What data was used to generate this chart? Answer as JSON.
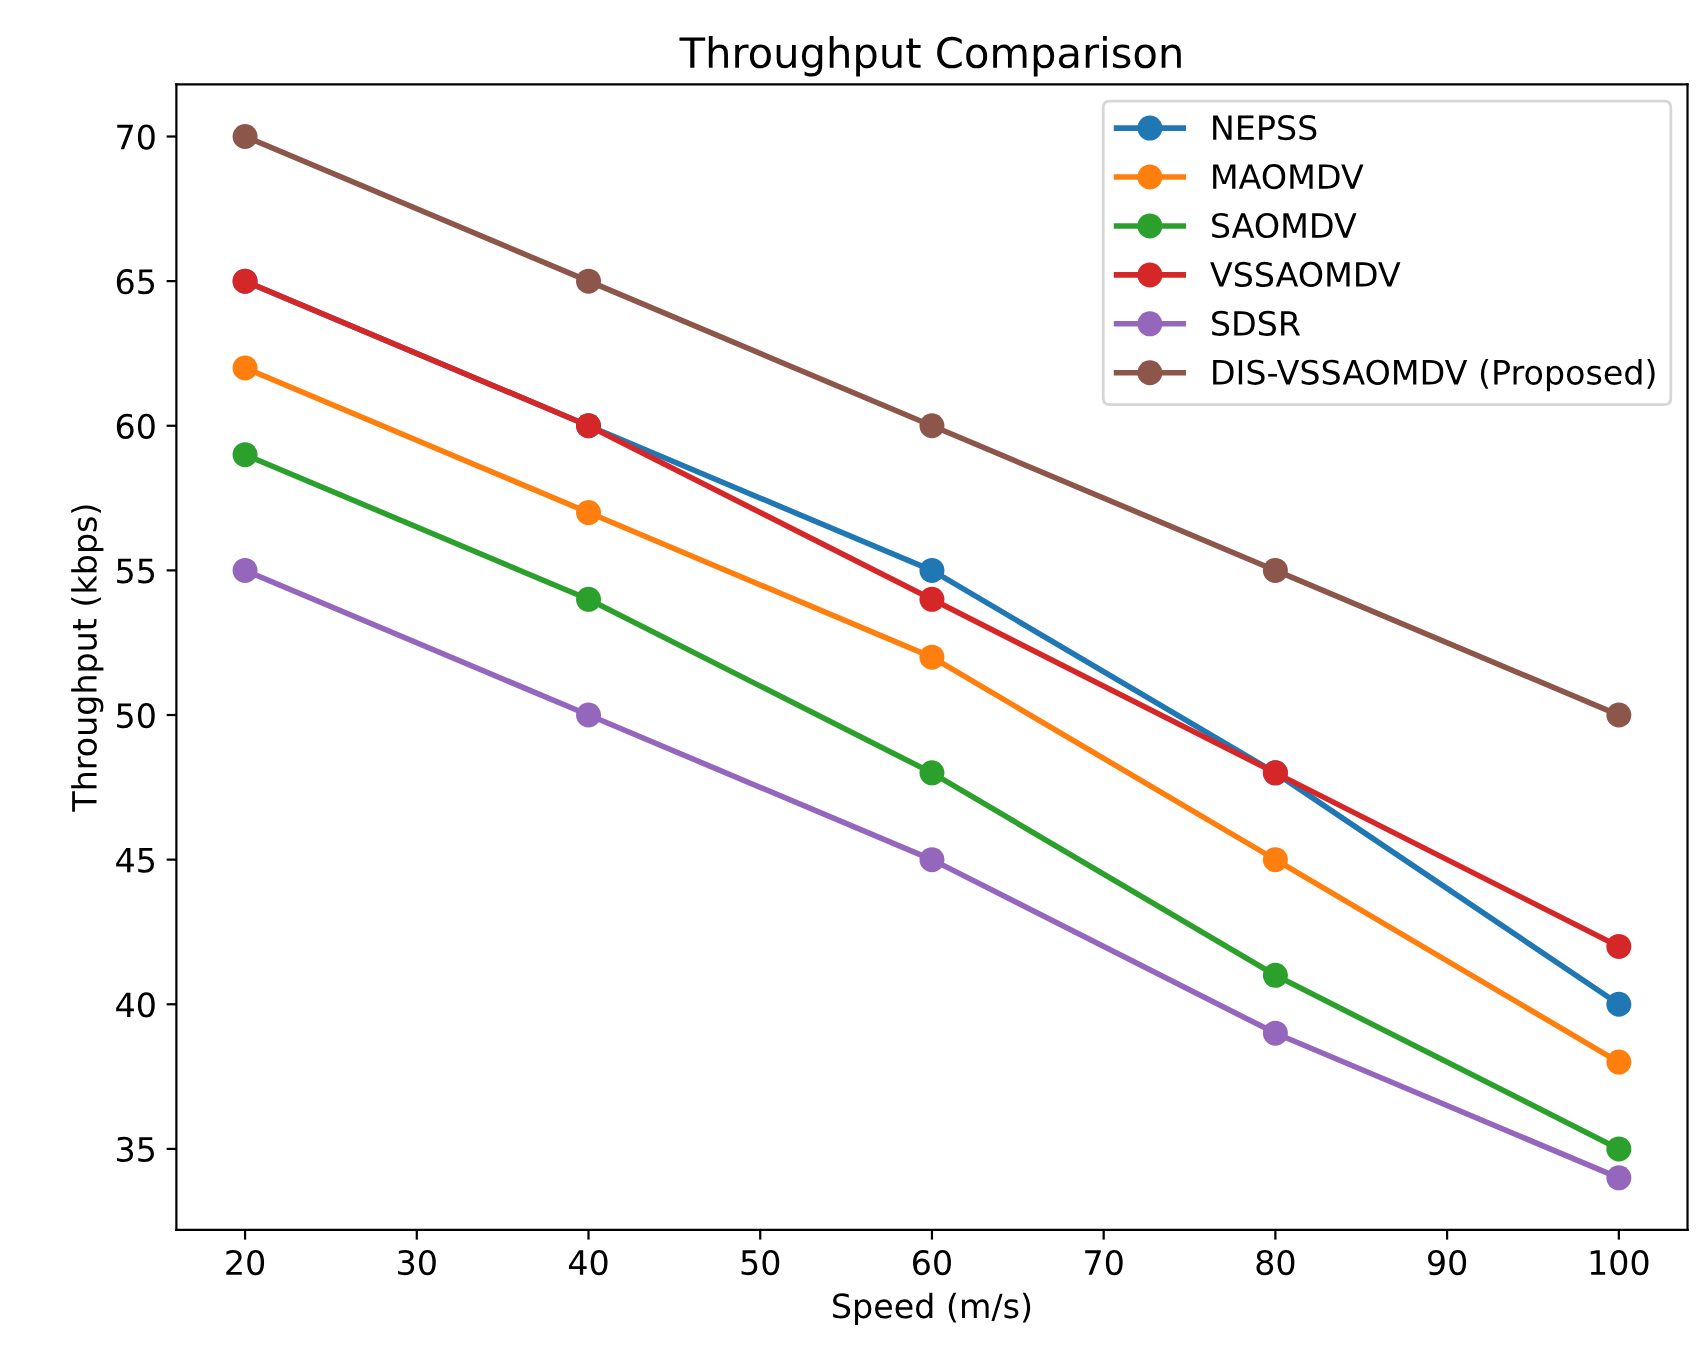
{
  "chart_data": {
    "type": "line",
    "title": "Throughput Comparison",
    "xlabel": "Speed (m/s)",
    "ylabel": "Throughput (kbps)",
    "x": [
      20,
      40,
      60,
      80,
      100
    ],
    "series": [
      {
        "name": "NEPSS",
        "color": "#1f77b4",
        "values": [
          65,
          60,
          55,
          48,
          40
        ]
      },
      {
        "name": "MAOMDV",
        "color": "#ff7f0e",
        "values": [
          62,
          57,
          52,
          45,
          38
        ]
      },
      {
        "name": "SAOMDV",
        "color": "#2ca02c",
        "values": [
          59,
          54,
          48,
          41,
          35
        ]
      },
      {
        "name": "VSSAOMDV",
        "color": "#d62728",
        "values": [
          65,
          60,
          54,
          48,
          42
        ]
      },
      {
        "name": "SDSR",
        "color": "#9467bd",
        "values": [
          55,
          50,
          45,
          39,
          34
        ]
      },
      {
        "name": "DIS-VSSAOMDV (Proposed)",
        "color": "#8c564b",
        "values": [
          70,
          65,
          60,
          55,
          50
        ]
      }
    ],
    "xlim": [
      16,
      104
    ],
    "ylim": [
      32.2,
      71.8
    ],
    "xticks": [
      20,
      30,
      40,
      50,
      60,
      70,
      80,
      90,
      100
    ],
    "yticks": [
      35,
      40,
      45,
      50,
      55,
      60,
      65,
      70
    ],
    "marker": "circle",
    "line_style": "solid",
    "legend": "top right",
    "grid": false
  }
}
